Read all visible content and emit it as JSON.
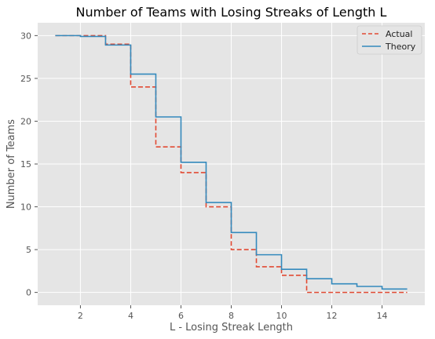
{
  "chart_data": {
    "type": "line",
    "step": "post",
    "title": "Number of Teams with Losing Streaks of Length L",
    "xlabel": "L - Losing Streak Length",
    "ylabel": "Number of Teams",
    "xlim": [
      0.3,
      15.7
    ],
    "ylim": [
      -1.5,
      31.5
    ],
    "xticks": [
      2,
      4,
      6,
      8,
      10,
      12,
      14
    ],
    "yticks": [
      0,
      5,
      10,
      15,
      20,
      25,
      30
    ],
    "grid": true,
    "legend_position": "top-right",
    "x": [
      1,
      2,
      3,
      4,
      5,
      6,
      7,
      8,
      9,
      10,
      11,
      12,
      13,
      14,
      15
    ],
    "series": [
      {
        "name": "Actual",
        "color": "#E24A33",
        "dash": "dashed",
        "values": [
          30,
          30,
          29,
          24,
          17,
          14,
          10,
          5,
          3,
          2,
          0,
          0,
          0,
          0,
          0
        ]
      },
      {
        "name": "Theory",
        "color": "#348ABD",
        "dash": "solid",
        "values": [
          30,
          29.9,
          28.9,
          25.5,
          20.5,
          15.2,
          10.5,
          7.0,
          4.4,
          2.7,
          1.6,
          1.0,
          0.7,
          0.4,
          0.4
        ]
      }
    ]
  }
}
